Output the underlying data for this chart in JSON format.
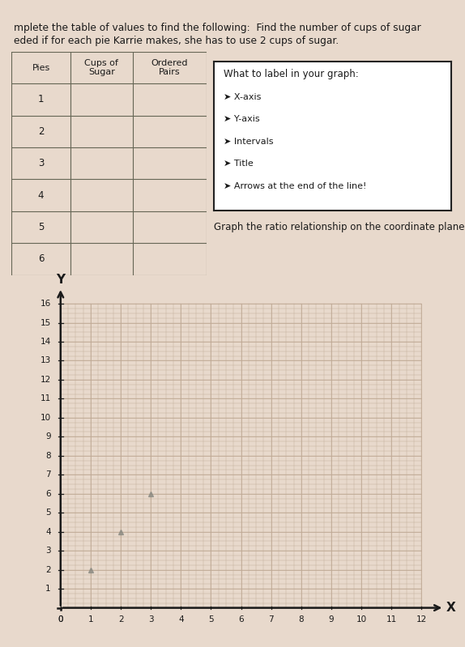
{
  "bg_color": "#e8d9cc",
  "header_text1": "mplete the table of values to find the following:  Find the number of cups of sugar",
  "header_text2": "eded if for each pie Karrie makes, she has to use 2 cups of sugar.",
  "table_col_headers": [
    "Pies",
    "Cups of\nSugar",
    "Ordered\nPairs"
  ],
  "table_rows": [
    1,
    2,
    3,
    4,
    5,
    6
  ],
  "box_title": "What to label in your graph:",
  "box_items": [
    "X-axis",
    "Y-axis",
    "Intervals",
    "Title",
    "Arrows at the end of the line!"
  ],
  "graph_instruction": "Graph the ratio relationship on the coordinate plane.",
  "x_label": "X",
  "y_label": "Y",
  "x_max": 12,
  "y_max": 16,
  "x_ticks": [
    0,
    1,
    2,
    3,
    4,
    5,
    6,
    7,
    8,
    9,
    10,
    11,
    12
  ],
  "y_ticks": [
    1,
    2,
    3,
    4,
    5,
    6,
    7,
    8,
    9,
    10,
    11,
    12,
    13,
    14,
    15,
    16
  ],
  "plotted_points": [
    [
      1,
      2
    ],
    [
      2,
      4
    ],
    [
      3,
      6
    ]
  ],
  "point_color": "#888880",
  "grid_color": "#c0aa96",
  "axis_color": "#1a1a1a",
  "text_color": "#1a1a1a",
  "table_line_color": "#666655",
  "box_border_color": "#222222",
  "white": "#ffffff"
}
